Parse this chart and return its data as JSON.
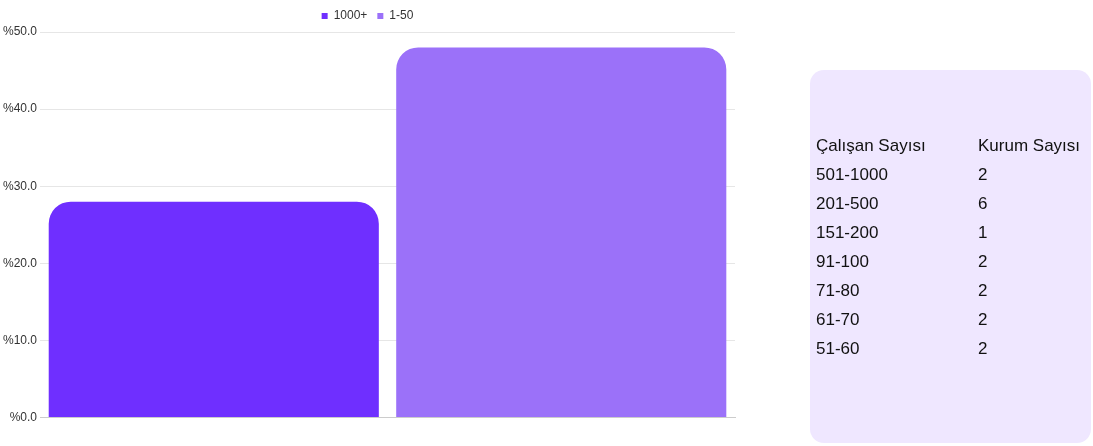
{
  "chart_data": [
    {
      "type": "bar",
      "categories": [
        null
      ],
      "series": [
        {
          "name": "1000+",
          "color": "#6f2fff",
          "values": [
            28
          ]
        },
        {
          "name": "1-50",
          "color": "#9b71f9",
          "values": [
            48
          ]
        }
      ],
      "ylim": [
        0,
        50
      ],
      "yticks": [
        {
          "value": 0,
          "label": "%0.0"
        },
        {
          "value": 10,
          "label": "%10.0"
        },
        {
          "value": 20,
          "label": "%20.0"
        },
        {
          "value": 30,
          "label": "%30.0"
        },
        {
          "value": 40,
          "label": "%40.0"
        },
        {
          "value": 50,
          "label": "%50.0"
        }
      ],
      "grid": "y",
      "legend": "top"
    },
    {
      "type": "other",
      "xlabel": "Çalışan Sayısı",
      "ylabel": "Kurum Sayısı",
      "categories": [
        "501-1000",
        "201-500",
        "151-200",
        "91-100",
        "71-80",
        "61-70",
        "51-60"
      ],
      "values": [
        2,
        6,
        1,
        2,
        2,
        2,
        2
      ],
      "data_labels": true
    }
  ]
}
